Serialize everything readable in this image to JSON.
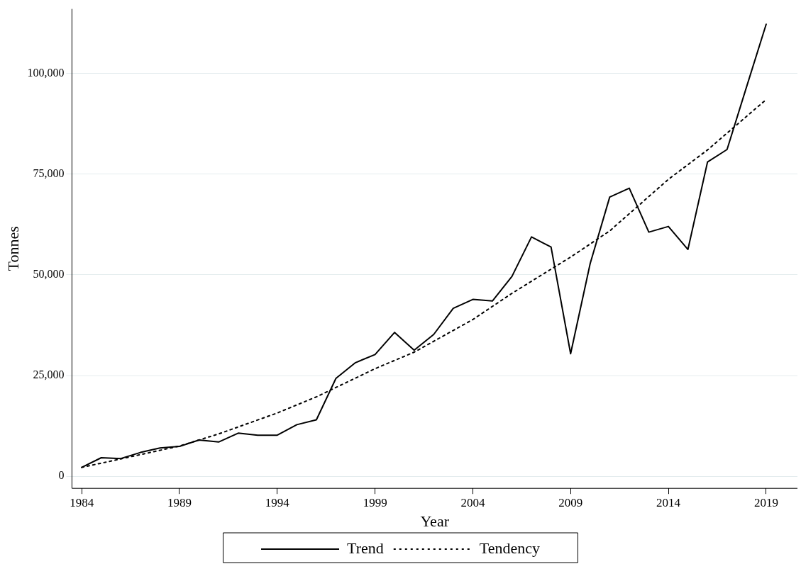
{
  "chart_data": {
    "type": "line",
    "xlabel": "Year",
    "ylabel": "Tonnes",
    "xlim": [
      1983.5,
      2020.6
    ],
    "xticks": [
      1984,
      1989,
      1994,
      1999,
      2004,
      2009,
      2014,
      2019
    ],
    "ylim": [
      -3000,
      116000
    ],
    "yticks": [
      0,
      {
        "value": 25000,
        "label": "25,000"
      },
      {
        "value": 50000,
        "label": "50,000"
      },
      {
        "value": 75000,
        "label": "75,000"
      },
      {
        "value": 100000,
        "label": "100,000"
      }
    ],
    "grid": "y",
    "legend": "bottom",
    "marker": "none",
    "series": [
      {
        "name": "Trend",
        "color": "#000000",
        "line_style": "solid",
        "x": [
          1984,
          1985,
          1986,
          1987,
          1988,
          1989,
          1990,
          1991,
          1992,
          1993,
          1994,
          1995,
          1996,
          1997,
          1998,
          1999,
          2000,
          2001,
          2002,
          2003,
          2004,
          2005,
          2006,
          2007,
          2008,
          2009,
          2010,
          2011,
          2012,
          2013,
          2014,
          2015,
          2016,
          2017,
          2018,
          2019
        ],
        "values": [
          2200,
          4600,
          4400,
          5900,
          7000,
          7400,
          9000,
          8500,
          10700,
          10200,
          10200,
          12800,
          14000,
          24300,
          28200,
          30200,
          35700,
          31300,
          35200,
          41700,
          43900,
          43500,
          49600,
          59400,
          56900,
          30400,
          52800,
          69300,
          71500,
          60600,
          62000,
          56300,
          78000,
          81100,
          96700,
          112200
        ]
      },
      {
        "name": "Tendency",
        "color": "#000000",
        "line_style": "dotted",
        "x": [
          1984,
          1986,
          1989,
          1991,
          1994,
          1996,
          1999,
          2001,
          2004,
          2006,
          2009,
          2011,
          2014,
          2016,
          2019
        ],
        "values": [
          2200,
          4300,
          7500,
          10500,
          15700,
          19700,
          26700,
          30800,
          38900,
          45400,
          54400,
          60900,
          73700,
          81000,
          93500
        ]
      }
    ]
  }
}
